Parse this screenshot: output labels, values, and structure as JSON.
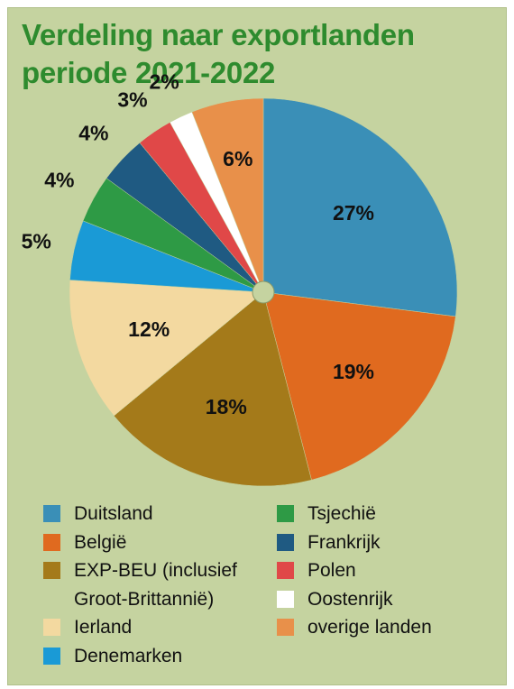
{
  "title": {
    "line1": "Verdeling naar exportlanden",
    "line2": "periode 2021-2022"
  },
  "chart_data": {
    "type": "pie",
    "unit": "%",
    "slices": [
      {
        "name": "Duitsland",
        "value": 27,
        "label": "27%",
        "color": "#3a8fb7"
      },
      {
        "name": "België",
        "value": 19,
        "label": "19%",
        "color": "#e06a1f"
      },
      {
        "name": "EXP-BEU (inclusief Groot-Brittannië)",
        "value": 18,
        "label": "18%",
        "color": "#a47a1a"
      },
      {
        "name": "Ierland",
        "value": 12,
        "label": "12%",
        "color": "#f3d9a0"
      },
      {
        "name": "Denemarken",
        "value": 5,
        "label": "5%",
        "color": "#1a9ad6"
      },
      {
        "name": "Tsjechië",
        "value": 4,
        "label": "4%",
        "color": "#2e9a45"
      },
      {
        "name": "Frankrijk",
        "value": 4,
        "label": "4%",
        "color": "#1f5a82"
      },
      {
        "name": "Polen",
        "value": 3,
        "label": "3%",
        "color": "#e04848"
      },
      {
        "name": "Oostenrijk",
        "value": 2,
        "label": "2%",
        "color": "#ffffff"
      },
      {
        "name": "overige landen",
        "value": 6,
        "label": "6%",
        "color": "#e8904a"
      }
    ],
    "center_dot_color": "#c5d3a0"
  },
  "legend": {
    "left": [
      {
        "lines": [
          "Duitsland"
        ],
        "color": "#3a8fb7"
      },
      {
        "lines": [
          "België"
        ],
        "color": "#e06a1f"
      },
      {
        "lines": [
          "EXP-BEU (inclusief",
          "Groot-Brittannië)"
        ],
        "color": "#a47a1a"
      },
      {
        "lines": [
          "Ierland"
        ],
        "color": "#f3d9a0"
      },
      {
        "lines": [
          "Denemarken"
        ],
        "color": "#1a9ad6"
      }
    ],
    "right": [
      {
        "lines": [
          "Tsjechië"
        ],
        "color": "#2e9a45"
      },
      {
        "lines": [
          "Frankrijk"
        ],
        "color": "#1f5a82"
      },
      {
        "lines": [
          "Polen"
        ],
        "color": "#e04848"
      },
      {
        "lines": [
          "Oostenrijk"
        ],
        "color": "#ffffff"
      },
      {
        "lines": [
          "overige landen"
        ],
        "color": "#e8904a"
      }
    ]
  }
}
